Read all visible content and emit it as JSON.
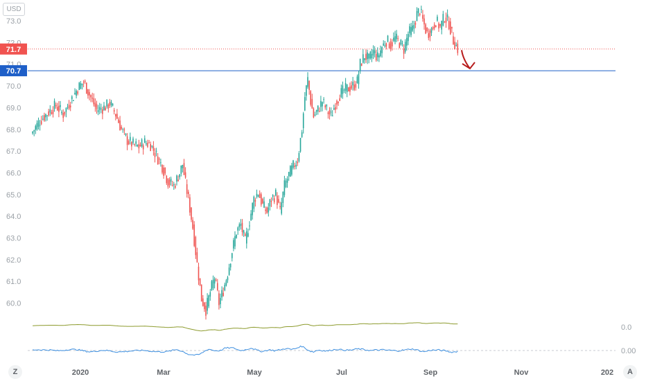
{
  "chart_data": {
    "type": "candlestick",
    "currency_label": "USD",
    "price_axis": {
      "min": 59.3,
      "max": 73.6,
      "ticks": [
        "73.0",
        "72.0",
        "71.0",
        "70.0",
        "69.0",
        "68.0",
        "67.0",
        "66.0",
        "65.0",
        "64.0",
        "63.0",
        "62.0",
        "61.0",
        "60.0"
      ]
    },
    "x_axis": {
      "labels": [
        "2020",
        "Mar",
        "May",
        "Jul",
        "Sep",
        "Nov",
        "202"
      ]
    },
    "levels": [
      {
        "label": "71.7",
        "value": 71.7,
        "color": "#f05350",
        "style": "dotted"
      },
      {
        "label": "70.7",
        "value": 70.7,
        "color": "#1e5fc8",
        "style": "solid"
      }
    ],
    "arrow": {
      "from_value": 71.65,
      "to_value": 70.8,
      "color": "#b71c1c"
    },
    "price_path": [
      [
        0,
        67.8
      ],
      [
        6,
        68.4
      ],
      [
        12,
        68.8
      ],
      [
        17,
        69.1
      ],
      [
        22,
        68.7
      ],
      [
        27,
        69.3
      ],
      [
        32,
        69.9
      ],
      [
        36,
        70.2
      ],
      [
        40,
        69.6
      ],
      [
        45,
        68.9
      ],
      [
        50,
        69.0
      ],
      [
        54,
        69.2
      ],
      [
        58,
        68.7
      ],
      [
        62,
        68.0
      ],
      [
        66,
        67.5
      ],
      [
        70,
        67.3
      ],
      [
        74,
        67.2
      ],
      [
        78,
        67.4
      ],
      [
        82,
        67.3
      ],
      [
        86,
        66.8
      ],
      [
        90,
        66.3
      ],
      [
        94,
        65.6
      ],
      [
        98,
        65.4
      ],
      [
        102,
        66.0
      ],
      [
        104,
        66.4
      ],
      [
        106,
        65.5
      ],
      [
        108,
        64.8
      ],
      [
        111,
        63.5
      ],
      [
        114,
        61.8
      ],
      [
        117,
        60.2
      ],
      [
        120,
        59.7
      ],
      [
        123,
        60.5
      ],
      [
        126,
        61.2
      ],
      [
        129,
        60.0
      ],
      [
        132,
        60.6
      ],
      [
        135,
        61.4
      ],
      [
        138,
        62.4
      ],
      [
        141,
        63.3
      ],
      [
        144,
        63.6
      ],
      [
        147,
        62.8
      ],
      [
        150,
        63.8
      ],
      [
        153,
        64.8
      ],
      [
        156,
        65.1
      ],
      [
        159,
        64.5
      ],
      [
        162,
        64.2
      ],
      [
        165,
        64.8
      ],
      [
        168,
        65.0
      ],
      [
        171,
        64.2
      ],
      [
        174,
        65.4
      ],
      [
        177,
        65.9
      ],
      [
        180,
        66.3
      ],
      [
        183,
        66.6
      ],
      [
        186,
        68.0
      ],
      [
        188,
        69.5
      ],
      [
        190,
        70.3
      ],
      [
        192,
        69.3
      ],
      [
        194,
        68.6
      ],
      [
        197,
        68.9
      ],
      [
        200,
        69.3
      ],
      [
        203,
        68.9
      ],
      [
        206,
        68.6
      ],
      [
        209,
        69.2
      ],
      [
        212,
        69.6
      ],
      [
        215,
        69.8
      ],
      [
        218,
        69.9
      ],
      [
        221,
        70.0
      ],
      [
        224,
        70.2
      ],
      [
        226,
        71.0
      ],
      [
        229,
        71.4
      ],
      [
        232,
        71.2
      ],
      [
        235,
        71.6
      ],
      [
        238,
        71.3
      ],
      [
        241,
        71.8
      ],
      [
        244,
        72.1
      ],
      [
        247,
        71.9
      ],
      [
        250,
        72.2
      ],
      [
        253,
        72.0
      ],
      [
        256,
        71.7
      ],
      [
        259,
        72.4
      ],
      [
        262,
        72.6
      ],
      [
        265,
        73.3
      ],
      [
        267,
        73.5
      ],
      [
        269,
        73.0
      ],
      [
        272,
        72.4
      ],
      [
        275,
        72.6
      ],
      [
        278,
        73.0
      ],
      [
        281,
        72.7
      ],
      [
        284,
        73.2
      ],
      [
        287,
        72.9
      ],
      [
        290,
        72.1
      ],
      [
        293,
        71.7
      ]
    ],
    "indicators": [
      {
        "name": "",
        "color": "#8c9a2c",
        "scale_label": "0.0"
      },
      {
        "name": "",
        "color": "#3d8fe0",
        "scale_label": "0.00"
      }
    ]
  },
  "ui": {
    "left_button": "Z",
    "right_button": "A"
  }
}
